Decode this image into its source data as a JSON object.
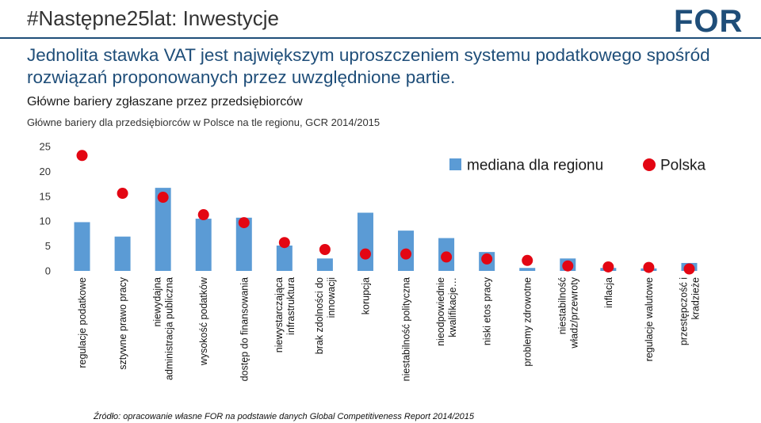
{
  "header": {
    "hashtag": "#Następne25lat: Inwestycje",
    "logo_text": "FOR"
  },
  "headline": "Jednolita stawka VAT jest największym uproszczeniem systemu podatkowego spośród rozwiązań proponowanych przez uwzględnione partie.",
  "subhead": "Główne bariery zgłaszane przez przedsiębiorców",
  "source": "Źródło: opracowanie własne FOR na podstawie danych Global Competitiveness Report 2014/2015",
  "colors": {
    "bar": "#5b9bd5",
    "dot": "#e30613",
    "headline": "#1f4e79",
    "logo": "#1f4e79",
    "logo_accent": "#e30613"
  },
  "chart_data": {
    "type": "bar",
    "title": "Główne bariery dla przedsiębiorców w Polsce na tle regionu, GCR 2014/2015",
    "xlabel": "",
    "ylabel": "",
    "ylim": [
      0,
      25
    ],
    "yticks": [
      0,
      5,
      10,
      15,
      20,
      25
    ],
    "grid": false,
    "legend": "top-right",
    "categories": [
      [
        "regulacje podatkowe"
      ],
      [
        "sztywne prawo pracy"
      ],
      [
        "niewydajna",
        "administracja publiczna"
      ],
      [
        "wysokość podatków"
      ],
      [
        "dostęp do finansowania"
      ],
      [
        "niewystarczająca",
        "infrastruktura"
      ],
      [
        "brak zdolności do",
        "innowacji"
      ],
      [
        "korupcja"
      ],
      [
        "niestabilność polityczna"
      ],
      [
        "nieodpowiednie",
        "kwalifikacje…"
      ],
      [
        "niski etos pracy"
      ],
      [
        "problemy zdrowotne"
      ],
      [
        "niestabilność",
        "władz/przewroty"
      ],
      [
        "inflacja"
      ],
      [
        "regulacje walutowe"
      ],
      [
        "przestępczość i",
        "kradzieże"
      ]
    ],
    "series": [
      {
        "name": "mediana dla regionu",
        "type": "bar",
        "values": [
          9.8,
          6.9,
          16.7,
          10.5,
          10.7,
          5.1,
          2.5,
          11.7,
          8.1,
          6.6,
          3.8,
          0.6,
          2.5,
          0.6,
          0.5,
          1.6
        ]
      },
      {
        "name": "Polska",
        "type": "scatter",
        "values": [
          23.2,
          15.6,
          14.8,
          11.3,
          9.7,
          5.7,
          4.3,
          3.4,
          3.4,
          2.8,
          2.4,
          2.1,
          1.0,
          0.8,
          0.7,
          0.4
        ]
      }
    ]
  }
}
